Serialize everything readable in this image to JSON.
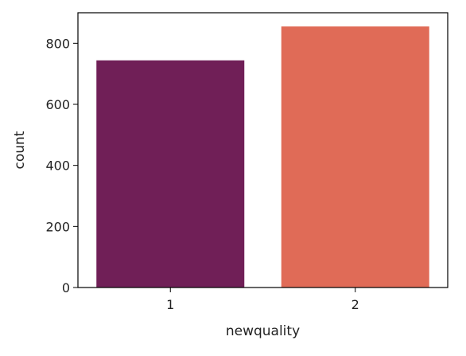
{
  "chart_data": {
    "type": "bar",
    "categories": [
      "1",
      "2"
    ],
    "values": [
      744,
      855
    ],
    "xlabel": "newquality",
    "ylabel": "count",
    "ylim": [
      0,
      900
    ],
    "yticks": [
      0,
      200,
      400,
      600,
      800
    ],
    "grid": false,
    "colors": [
      "#701f57",
      "#e06b57"
    ]
  }
}
